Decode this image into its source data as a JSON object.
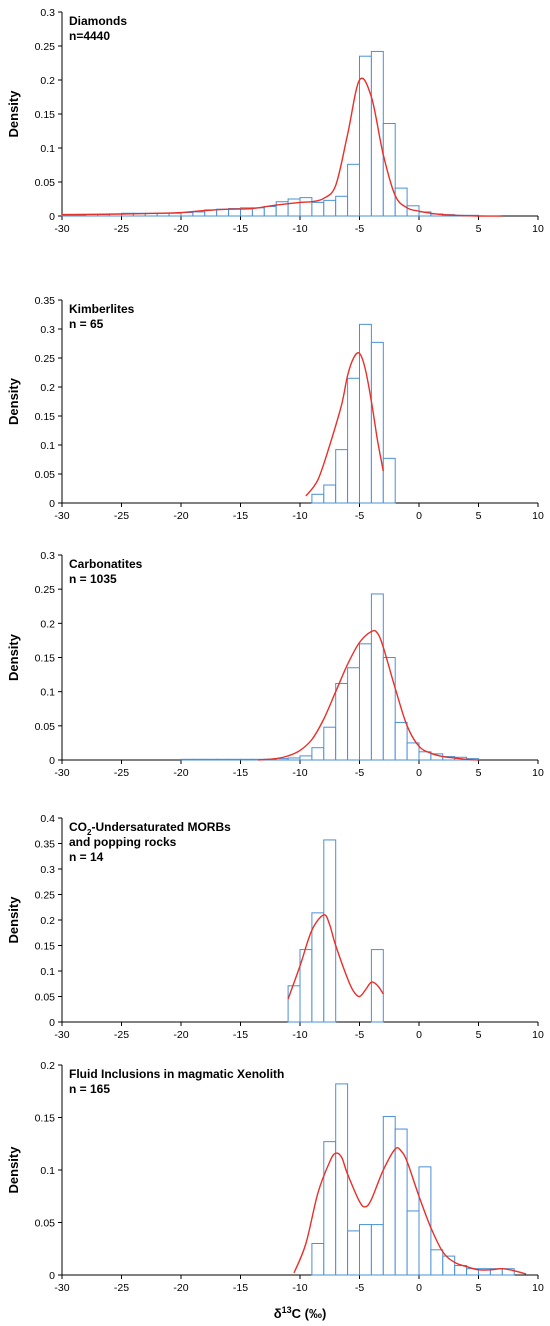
{
  "figure": {
    "xlabel": "δ13C (‰)",
    "bar_color": "#4a90d6",
    "curve_color": "#e8302a"
  },
  "chart_data": [
    {
      "type": "bar",
      "title": "Diamonds",
      "subtitle": "n=4440",
      "ylabel": "Density",
      "xlim": [
        -30,
        10
      ],
      "ylim": [
        0,
        0.3
      ],
      "xticks": [
        -30,
        -25,
        -20,
        -15,
        -10,
        -5,
        0,
        5,
        10
      ],
      "yticks": [
        0,
        0.05,
        0.1,
        0.15,
        0.2,
        0.25,
        0.3
      ],
      "bin_width": 1,
      "bins": [
        [
          -30,
          0.001
        ],
        [
          -29,
          0.001
        ],
        [
          -28,
          0.002
        ],
        [
          -27,
          0.002
        ],
        [
          -26,
          0.003
        ],
        [
          -25,
          0.004
        ],
        [
          -24,
          0.004
        ],
        [
          -23,
          0.004
        ],
        [
          -22,
          0.004
        ],
        [
          -21,
          0.004
        ],
        [
          -20,
          0.005
        ],
        [
          -19,
          0.006
        ],
        [
          -18,
          0.009
        ],
        [
          -17,
          0.01
        ],
        [
          -16,
          0.011
        ],
        [
          -15,
          0.012
        ],
        [
          -14,
          0.012
        ],
        [
          -13,
          0.014
        ],
        [
          -12,
          0.021
        ],
        [
          -11,
          0.025
        ],
        [
          -10,
          0.027
        ],
        [
          -9,
          0.02
        ],
        [
          -8,
          0.023
        ],
        [
          -7,
          0.029
        ],
        [
          -6,
          0.076
        ],
        [
          -5,
          0.235
        ],
        [
          -4,
          0.242
        ],
        [
          -3,
          0.136
        ],
        [
          -2,
          0.041
        ],
        [
          -1,
          0.015
        ],
        [
          0,
          0.006
        ],
        [
          1,
          0.003
        ],
        [
          2,
          0.002
        ],
        [
          3,
          0.001
        ],
        [
          4,
          0.001
        ]
      ],
      "curve": [
        [
          -30,
          0.002
        ],
        [
          -25,
          0.003
        ],
        [
          -22,
          0.004
        ],
        [
          -20,
          0.005
        ],
        [
          -18,
          0.008
        ],
        [
          -16,
          0.01
        ],
        [
          -14,
          0.011
        ],
        [
          -12,
          0.016
        ],
        [
          -10,
          0.02
        ],
        [
          -9,
          0.021
        ],
        [
          -8,
          0.026
        ],
        [
          -7,
          0.045
        ],
        [
          -6,
          0.12
        ],
        [
          -5,
          0.2
        ],
        [
          -4,
          0.175
        ],
        [
          -3,
          0.09
        ],
        [
          -2,
          0.03
        ],
        [
          -1,
          0.012
        ],
        [
          0,
          0.007
        ],
        [
          1,
          0.004
        ],
        [
          2,
          0.002
        ],
        [
          3,
          0.001
        ],
        [
          5,
          0.0
        ],
        [
          7,
          0.0
        ]
      ]
    },
    {
      "type": "bar",
      "title": "Kimberlites",
      "subtitle": "n = 65",
      "ylabel": "Density",
      "xlim": [
        -30,
        10
      ],
      "ylim": [
        0,
        0.35
      ],
      "xticks": [
        -30,
        -25,
        -20,
        -15,
        -10,
        -5,
        0,
        5,
        10
      ],
      "yticks": [
        0,
        0.05,
        0.1,
        0.15,
        0.2,
        0.25,
        0.3,
        0.35
      ],
      "bin_width": 1,
      "bins": [
        [
          -9,
          0.015
        ],
        [
          -8,
          0.031
        ],
        [
          -7,
          0.092
        ],
        [
          -6,
          0.215
        ],
        [
          -5,
          0.308
        ],
        [
          -4,
          0.277
        ],
        [
          -3,
          0.077
        ]
      ],
      "curve": [
        [
          -9.5,
          0.012
        ],
        [
          -8.5,
          0.04
        ],
        [
          -7.5,
          0.1
        ],
        [
          -6.5,
          0.17
        ],
        [
          -6,
          0.22
        ],
        [
          -5.5,
          0.25
        ],
        [
          -5,
          0.258
        ],
        [
          -4.5,
          0.23
        ],
        [
          -4,
          0.175
        ],
        [
          -3.5,
          0.11
        ],
        [
          -3,
          0.055
        ]
      ]
    },
    {
      "type": "bar",
      "title": "Carbonatites",
      "subtitle": "n = 1035",
      "ylabel": "Density",
      "xlim": [
        -30,
        10
      ],
      "ylim": [
        0,
        0.3
      ],
      "xticks": [
        -30,
        -25,
        -20,
        -15,
        -10,
        -5,
        0,
        5,
        10
      ],
      "yticks": [
        0,
        0.05,
        0.1,
        0.15,
        0.2,
        0.25,
        0.3
      ],
      "bin_width": 1,
      "bins": [
        [
          -20,
          0.001
        ],
        [
          -19,
          0.001
        ],
        [
          -18,
          0.001
        ],
        [
          -17,
          0.001
        ],
        [
          -16,
          0.001
        ],
        [
          -15,
          0.001
        ],
        [
          -14,
          0.001
        ],
        [
          -13,
          0.001
        ],
        [
          -12,
          0.002
        ],
        [
          -11,
          0.003
        ],
        [
          -10,
          0.006
        ],
        [
          -9,
          0.018
        ],
        [
          -8,
          0.048
        ],
        [
          -7,
          0.112
        ],
        [
          -6,
          0.135
        ],
        [
          -5,
          0.17
        ],
        [
          -4,
          0.243
        ],
        [
          -3,
          0.15
        ],
        [
          -2,
          0.055
        ],
        [
          -1,
          0.025
        ],
        [
          0,
          0.012
        ],
        [
          1,
          0.009
        ],
        [
          2,
          0.005
        ],
        [
          3,
          0.004
        ],
        [
          4,
          0.002
        ]
      ],
      "curve": [
        [
          -13.5,
          0.0
        ],
        [
          -12,
          0.002
        ],
        [
          -11,
          0.006
        ],
        [
          -10,
          0.014
        ],
        [
          -9,
          0.03
        ],
        [
          -8,
          0.06
        ],
        [
          -7,
          0.1
        ],
        [
          -6,
          0.14
        ],
        [
          -5,
          0.172
        ],
        [
          -4,
          0.188
        ],
        [
          -3.5,
          0.186
        ],
        [
          -3,
          0.165
        ],
        [
          -2,
          0.105
        ],
        [
          -1,
          0.05
        ],
        [
          0,
          0.02
        ],
        [
          1,
          0.01
        ],
        [
          2,
          0.005
        ],
        [
          3,
          0.003
        ],
        [
          4,
          0.001
        ],
        [
          5,
          0.0
        ]
      ]
    },
    {
      "type": "bar",
      "title": "CO2-Undersaturated MORBs",
      "title_line2": "and popping rocks",
      "subtitle": "n = 14",
      "ylabel": "Density",
      "xlim": [
        -30,
        10
      ],
      "ylim": [
        0,
        0.4
      ],
      "xticks": [
        -30,
        -25,
        -20,
        -15,
        -10,
        -5,
        0,
        5,
        10
      ],
      "yticks": [
        0,
        0.05,
        0.1,
        0.15,
        0.2,
        0.25,
        0.3,
        0.35,
        0.4
      ],
      "bin_width": 1,
      "bins": [
        [
          -11,
          0.071
        ],
        [
          -10,
          0.142
        ],
        [
          -9,
          0.214
        ],
        [
          -8,
          0.357
        ],
        [
          -4,
          0.142
        ]
      ],
      "curve": [
        [
          -11,
          0.045
        ],
        [
          -10,
          0.11
        ],
        [
          -9,
          0.18
        ],
        [
          -8,
          0.21
        ],
        [
          -7.5,
          0.19
        ],
        [
          -7,
          0.15
        ],
        [
          -6,
          0.085
        ],
        [
          -5.5,
          0.06
        ],
        [
          -5,
          0.05
        ],
        [
          -4.5,
          0.063
        ],
        [
          -4,
          0.078
        ],
        [
          -3.5,
          0.072
        ],
        [
          -3,
          0.055
        ]
      ]
    },
    {
      "type": "bar",
      "title": "Fluid Inclusions in magmatic Xenolith",
      "subtitle": "n = 165",
      "ylabel": "Density",
      "xlim": [
        -30,
        10
      ],
      "ylim": [
        0,
        0.2
      ],
      "xticks": [
        -30,
        -25,
        -20,
        -15,
        -10,
        -5,
        0,
        5,
        10
      ],
      "yticks": [
        0,
        0.05,
        0.1,
        0.15,
        0.2
      ],
      "bin_width": 1,
      "bins": [
        [
          -9,
          0.03
        ],
        [
          -8,
          0.127
        ],
        [
          -7,
          0.182
        ],
        [
          -6,
          0.042
        ],
        [
          -5,
          0.048
        ],
        [
          -4,
          0.048
        ],
        [
          -3,
          0.151
        ],
        [
          -2,
          0.139
        ],
        [
          -1,
          0.061
        ],
        [
          0,
          0.103
        ],
        [
          1,
          0.024
        ],
        [
          2,
          0.018
        ],
        [
          3,
          0.009
        ],
        [
          4,
          0.006
        ],
        [
          5,
          0.006
        ],
        [
          6,
          0.006
        ],
        [
          7,
          0.006
        ]
      ],
      "curve": [
        [
          -10.5,
          0.002
        ],
        [
          -9.5,
          0.03
        ],
        [
          -8.5,
          0.078
        ],
        [
          -7.5,
          0.108
        ],
        [
          -7,
          0.116
        ],
        [
          -6.5,
          0.112
        ],
        [
          -6,
          0.096
        ],
        [
          -5,
          0.07
        ],
        [
          -4.5,
          0.065
        ],
        [
          -4,
          0.072
        ],
        [
          -3,
          0.1
        ],
        [
          -2,
          0.12
        ],
        [
          -1.5,
          0.118
        ],
        [
          -1,
          0.108
        ],
        [
          0,
          0.075
        ],
        [
          1,
          0.045
        ],
        [
          2,
          0.022
        ],
        [
          3,
          0.012
        ],
        [
          4,
          0.008
        ],
        [
          5,
          0.005
        ],
        [
          6,
          0.005
        ],
        [
          7,
          0.006
        ],
        [
          8,
          0.004
        ],
        [
          9,
          0.001
        ]
      ]
    }
  ]
}
